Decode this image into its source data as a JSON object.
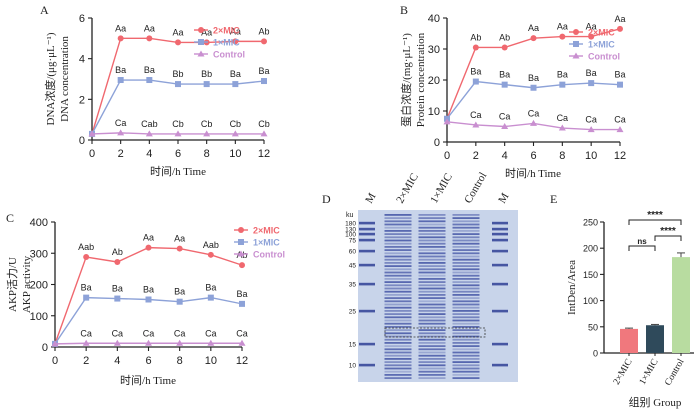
{
  "colors": {
    "mic2": "#f0686f",
    "mic1": "#8da2d8",
    "control": "#c98fd0",
    "axis": "#222222",
    "barA": "#f0787d",
    "barB": "#2f4a5b",
    "barC": "#b8dca0",
    "gel": "#c8d4ea"
  },
  "chart_data": [
    {
      "type": "line",
      "panel_letter": "A",
      "ylabel_cn": "DNA浓度/(μg·μL⁻¹)",
      "ylabel_en": "DNA concentration",
      "xlabel": "时间/h  Time",
      "x": [
        0,
        2,
        4,
        6,
        8,
        10,
        12
      ],
      "xlim": [
        0,
        12
      ],
      "ylim": [
        0,
        6
      ],
      "xticks": [
        0,
        2,
        4,
        6,
        8,
        10,
        12
      ],
      "yticks": [
        0,
        2,
        4,
        6
      ],
      "legend_position": "top-right",
      "series": [
        {
          "name": "2×MIC",
          "color": "#f0686f",
          "marker": "circle",
          "values": [
            0.3,
            5.0,
            5.0,
            4.8,
            4.8,
            4.85,
            4.85
          ],
          "labels": [
            "",
            "Aa",
            "Aa",
            "Aa",
            "Aa",
            "Aa",
            "Ab"
          ]
        },
        {
          "name": "1×MIC",
          "color": "#8da2d8",
          "marker": "square",
          "values": [
            0.3,
            2.95,
            2.95,
            2.75,
            2.75,
            2.75,
            2.9
          ],
          "labels": [
            "",
            "Ba",
            "Ba",
            "Bb",
            "Bb",
            "Ba",
            "Ba"
          ]
        },
        {
          "name": "Control",
          "color": "#c98fd0",
          "marker": "triangle",
          "values": [
            0.3,
            0.35,
            0.3,
            0.3,
            0.3,
            0.3,
            0.3
          ],
          "labels": [
            "",
            "Ca",
            "Cab",
            "Cb",
            "Cb",
            "Cb",
            "Cb"
          ]
        }
      ]
    },
    {
      "type": "line",
      "panel_letter": "B",
      "ylabel_cn": "蛋白浓度/(mg·μL⁻¹)",
      "ylabel_en": "Protein concentration",
      "xlabel": "时间/h  Time",
      "x": [
        0,
        2,
        4,
        6,
        8,
        10,
        12
      ],
      "xlim": [
        0,
        12
      ],
      "ylim": [
        0,
        40
      ],
      "xticks": [
        0,
        2,
        4,
        6,
        8,
        10,
        12
      ],
      "yticks": [
        0,
        10,
        20,
        30,
        40
      ],
      "legend_position": "top-right",
      "series": [
        {
          "name": "2×MIC",
          "color": "#f0686f",
          "marker": "circle",
          "values": [
            7.5,
            30.5,
            30.5,
            33.5,
            34.0,
            34.0,
            36.5
          ],
          "labels": [
            "",
            "Ab",
            "Ab",
            "Aa",
            "Aa",
            "Aa",
            "Aa"
          ]
        },
        {
          "name": "1×MIC",
          "color": "#8da2d8",
          "marker": "square",
          "values": [
            7.5,
            19.5,
            18.5,
            17.5,
            18.5,
            19.0,
            18.5
          ],
          "labels": [
            "",
            "Ba",
            "Ba",
            "Ba",
            "Ba",
            "Ba",
            "Ba"
          ]
        },
        {
          "name": "Control",
          "color": "#c98fd0",
          "marker": "triangle",
          "values": [
            6.5,
            5.5,
            5.0,
            6.0,
            4.5,
            4.0,
            4.0
          ],
          "labels": [
            "",
            "Ca",
            "Ca",
            "Ca",
            "Ca",
            "Ca",
            "Ca"
          ]
        }
      ]
    },
    {
      "type": "line",
      "panel_letter": "C",
      "ylabel_cn": "AKP活力/U",
      "ylabel_en": "AKP activity",
      "xlabel": "时间/h  Time",
      "x": [
        0,
        2,
        4,
        6,
        8,
        10,
        12
      ],
      "xlim": [
        0,
        12
      ],
      "ylim": [
        0,
        400
      ],
      "xticks": [
        0,
        2,
        4,
        6,
        8,
        10,
        12
      ],
      "yticks": [
        0,
        100,
        200,
        300,
        400
      ],
      "legend_position": "top-right",
      "series": [
        {
          "name": "2×MIC",
          "color": "#f0686f",
          "marker": "circle",
          "values": [
            10,
            288,
            272,
            318,
            315,
            295,
            262
          ],
          "labels": [
            "",
            "Aab",
            "Ab",
            "Aa",
            "Aa",
            "Aab",
            "Ab"
          ]
        },
        {
          "name": "1×MIC",
          "color": "#8da2d8",
          "marker": "square",
          "values": [
            10,
            158,
            155,
            152,
            145,
            158,
            138
          ],
          "labels": [
            "",
            "Ba",
            "Ba",
            "Ba",
            "Ba",
            "Ba",
            "Ba"
          ]
        },
        {
          "name": "Control",
          "color": "#c98fd0",
          "marker": "triangle",
          "values": [
            10,
            12,
            12,
            12,
            12,
            12,
            12
          ],
          "labels": [
            "",
            "Ca",
            "Ca",
            "Ca",
            "Ca",
            "Ca",
            "Ca"
          ]
        }
      ]
    },
    {
      "type": "bar",
      "panel_letter": "E",
      "ylabel": "IntDen/Area",
      "xlabel": "组别 Group",
      "categories": [
        "2×MIC",
        "1×MIC",
        "Control"
      ],
      "values": [
        46,
        53,
        183
      ],
      "errors": [
        1.5,
        1.5,
        8
      ],
      "colors": [
        "#f0787d",
        "#2f4a5b",
        "#b8dca0"
      ],
      "ylim": [
        0,
        250
      ],
      "yticks": [
        0,
        50,
        100,
        150,
        200,
        250
      ],
      "significance": [
        {
          "from": 0,
          "to": 1,
          "label": "ns"
        },
        {
          "from": 1,
          "to": 2,
          "label": "****"
        },
        {
          "from": 0,
          "to": 2,
          "label": "****"
        }
      ]
    }
  ],
  "gel": {
    "panel_letter": "D",
    "unit": "ku",
    "lanes": [
      "M",
      "2×MIC",
      "1×MIC",
      "Control",
      "M"
    ],
    "markers": [
      "180",
      "130",
      "100",
      "75",
      "60",
      "45",
      "35",
      "25",
      "15",
      "10"
    ]
  }
}
